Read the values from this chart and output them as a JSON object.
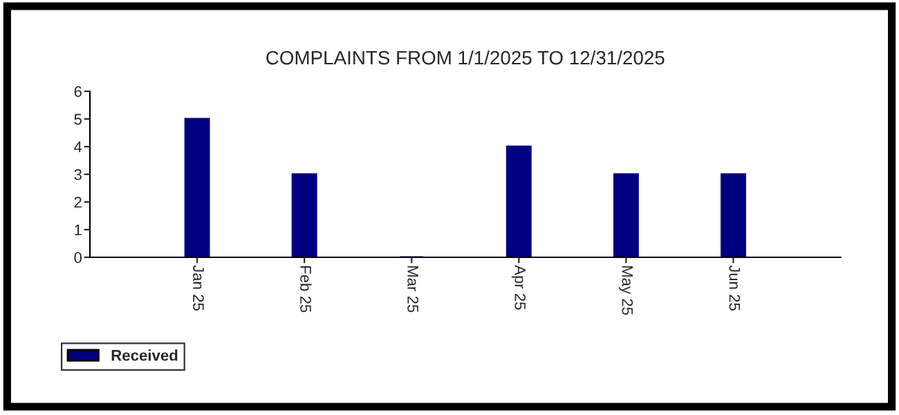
{
  "chart_data": {
    "type": "bar",
    "title": "COMPLAINTS FROM 1/1/2025 TO 12/31/2025",
    "categories": [
      "Jan 25",
      "Feb 25",
      "Mar 25",
      "Apr 25",
      "May 25",
      "Jun 25"
    ],
    "series": [
      {
        "name": "Received",
        "color": "#000080",
        "values": [
          5,
          3,
          0,
          4,
          3,
          3
        ]
      }
    ],
    "ylim": [
      0,
      6
    ],
    "yticks": [
      0,
      1,
      2,
      3,
      4,
      5,
      6
    ],
    "grid": false,
    "legend": "bottom left"
  }
}
